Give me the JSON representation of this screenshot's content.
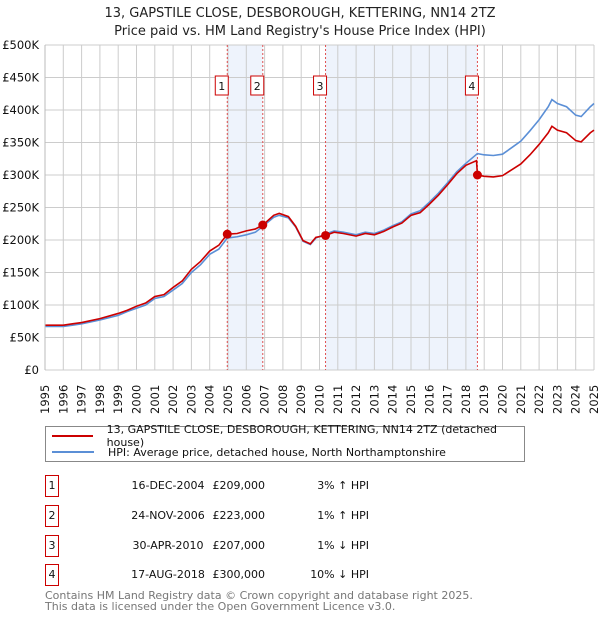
{
  "title": "13, GAPSTILE CLOSE, DESBOROUGH, KETTERING, NN14 2TZ",
  "subtitle": "Price paid vs. HM Land Registry's House Price Index (HPI)",
  "chart_data": {
    "type": "line",
    "xlim": [
      1995,
      2025
    ],
    "ylim": [
      0,
      500000
    ],
    "yticks": [
      "£0",
      "£50K",
      "£100K",
      "£150K",
      "£200K",
      "£250K",
      "£300K",
      "£350K",
      "£400K",
      "£450K",
      "£500K"
    ],
    "xticks": [
      "1995",
      "1996",
      "1997",
      "1998",
      "1999",
      "2000",
      "2001",
      "2002",
      "2003",
      "2004",
      "2005",
      "2006",
      "2007",
      "2008",
      "2009",
      "2010",
      "2011",
      "2012",
      "2013",
      "2014",
      "2015",
      "2016",
      "2017",
      "2018",
      "2019",
      "2020",
      "2021",
      "2022",
      "2023",
      "2024",
      "2025"
    ],
    "grid": true,
    "colors": {
      "property": "#cc0000",
      "hpi": "#5b8fd6",
      "shade": "#eef3fc"
    },
    "series": [
      {
        "name": "13, GAPSTILE CLOSE, DESBOROUGH, KETTERING, NN14 2TZ (detached house)",
        "key": "property",
        "points": [
          [
            1995,
            69
          ],
          [
            1996,
            69
          ],
          [
            1996.5,
            71
          ],
          [
            1997,
            73
          ],
          [
            1998,
            79
          ],
          [
            1999,
            87
          ],
          [
            1999.5,
            92
          ],
          [
            2000,
            98
          ],
          [
            2000.5,
            103
          ],
          [
            2001,
            113
          ],
          [
            2001.5,
            116
          ],
          [
            2002,
            127
          ],
          [
            2002.5,
            137
          ],
          [
            2003,
            155
          ],
          [
            2003.5,
            167
          ],
          [
            2004,
            183
          ],
          [
            2004.5,
            192
          ],
          [
            2004.96,
            209
          ],
          [
            2005.5,
            210
          ],
          [
            2006,
            214
          ],
          [
            2006.5,
            217
          ],
          [
            2006.9,
            223
          ],
          [
            2007.5,
            238
          ],
          [
            2007.8,
            241
          ],
          [
            2008.3,
            236
          ],
          [
            2008.7,
            221
          ],
          [
            2009.1,
            199
          ],
          [
            2009.5,
            194
          ],
          [
            2009.8,
            204
          ],
          [
            2010.33,
            207
          ],
          [
            2010.8,
            212
          ],
          [
            2011.3,
            210
          ],
          [
            2012,
            206
          ],
          [
            2012.5,
            210
          ],
          [
            2013,
            208
          ],
          [
            2013.5,
            213
          ],
          [
            2014,
            220
          ],
          [
            2014.5,
            226
          ],
          [
            2015,
            238
          ],
          [
            2015.5,
            242
          ],
          [
            2016,
            255
          ],
          [
            2016.5,
            269
          ],
          [
            2017,
            285
          ],
          [
            2017.5,
            302
          ],
          [
            2018,
            315
          ],
          [
            2018.58,
            322
          ],
          [
            2018.63,
            300
          ],
          [
            2019,
            298
          ],
          [
            2019.5,
            297
          ],
          [
            2020,
            299
          ],
          [
            2020.5,
            308
          ],
          [
            2021,
            317
          ],
          [
            2021.5,
            331
          ],
          [
            2022,
            347
          ],
          [
            2022.5,
            365
          ],
          [
            2022.7,
            375
          ],
          [
            2023,
            369
          ],
          [
            2023.5,
            365
          ],
          [
            2024,
            353
          ],
          [
            2024.3,
            351
          ],
          [
            2024.8,
            365
          ],
          [
            2025,
            369
          ]
        ]
      },
      {
        "name": "HPI: Average price, detached house, North Northamptonshire",
        "key": "hpi",
        "points": [
          [
            1995,
            67
          ],
          [
            1996,
            67
          ],
          [
            1996.5,
            69
          ],
          [
            1997,
            71
          ],
          [
            1998,
            77
          ],
          [
            1999,
            84
          ],
          [
            1999.5,
            90
          ],
          [
            2000,
            95
          ],
          [
            2000.5,
            100
          ],
          [
            2001,
            110
          ],
          [
            2001.5,
            113
          ],
          [
            2002,
            123
          ],
          [
            2002.5,
            133
          ],
          [
            2003,
            150
          ],
          [
            2003.5,
            162
          ],
          [
            2004,
            178
          ],
          [
            2004.5,
            186
          ],
          [
            2004.96,
            203
          ],
          [
            2005.5,
            205
          ],
          [
            2006,
            208
          ],
          [
            2006.5,
            212
          ],
          [
            2006.9,
            221
          ],
          [
            2007.5,
            235
          ],
          [
            2007.8,
            238
          ],
          [
            2008.3,
            234
          ],
          [
            2008.7,
            220
          ],
          [
            2009.1,
            198
          ],
          [
            2009.5,
            193
          ],
          [
            2009.8,
            203
          ],
          [
            2010.33,
            209
          ],
          [
            2010.8,
            214
          ],
          [
            2011.3,
            212
          ],
          [
            2012,
            208
          ],
          [
            2012.5,
            212
          ],
          [
            2013,
            210
          ],
          [
            2013.5,
            215
          ],
          [
            2014,
            222
          ],
          [
            2014.5,
            228
          ],
          [
            2015,
            240
          ],
          [
            2015.5,
            245
          ],
          [
            2016,
            258
          ],
          [
            2016.5,
            272
          ],
          [
            2017,
            288
          ],
          [
            2017.5,
            305
          ],
          [
            2018,
            318
          ],
          [
            2018.63,
            333
          ],
          [
            2019,
            331
          ],
          [
            2019.5,
            330
          ],
          [
            2020,
            332
          ],
          [
            2020.5,
            342
          ],
          [
            2021,
            352
          ],
          [
            2021.5,
            368
          ],
          [
            2022,
            385
          ],
          [
            2022.5,
            405
          ],
          [
            2022.7,
            416
          ],
          [
            2023,
            410
          ],
          [
            2023.5,
            405
          ],
          [
            2024,
            392
          ],
          [
            2024.3,
            390
          ],
          [
            2024.8,
            405
          ],
          [
            2025,
            410
          ]
        ]
      }
    ],
    "units_note": "values in £ thousands",
    "sales": [
      {
        "label": "1",
        "x": 2004.96,
        "y": 209
      },
      {
        "label": "2",
        "x": 2006.9,
        "y": 223
      },
      {
        "label": "3",
        "x": 2010.33,
        "y": 207
      },
      {
        "label": "4",
        "x": 2018.63,
        "y": 300
      }
    ],
    "shaded_ranges": [
      [
        2004.96,
        2006.9
      ],
      [
        2010.33,
        2018.63
      ]
    ]
  },
  "legend": {
    "property": "13, GAPSTILE CLOSE, DESBOROUGH, KETTERING, NN14 2TZ (detached house)",
    "hpi": "HPI: Average price, detached house, North Northamptonshire"
  },
  "transactions": [
    {
      "num": "1",
      "date": "16-DEC-2004",
      "price": "£209,000",
      "hpi": "3% ↑ HPI"
    },
    {
      "num": "2",
      "date": "24-NOV-2006",
      "price": "£223,000",
      "hpi": "1% ↑ HPI"
    },
    {
      "num": "3",
      "date": "30-APR-2010",
      "price": "£207,000",
      "hpi": "1% ↓ HPI"
    },
    {
      "num": "4",
      "date": "17-AUG-2018",
      "price": "£300,000",
      "hpi": "10% ↓ HPI"
    }
  ],
  "footer": {
    "line1": "Contains HM Land Registry data © Crown copyright and database right 2025.",
    "line2": "This data is licensed under the Open Government Licence v3.0."
  }
}
